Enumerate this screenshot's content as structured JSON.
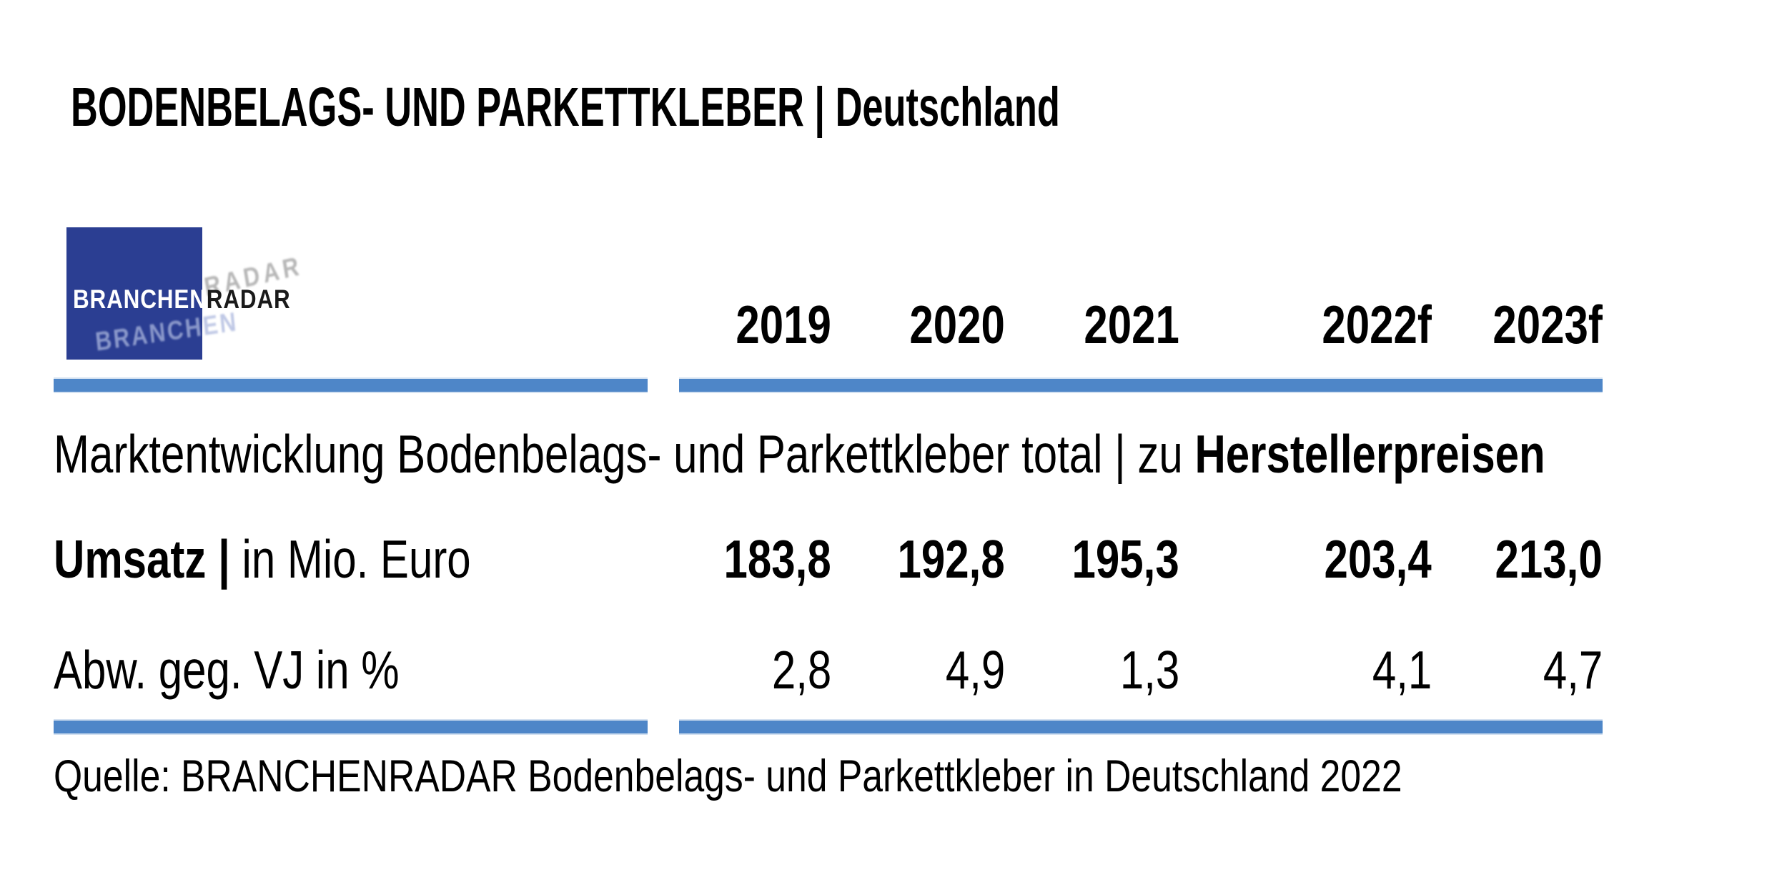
{
  "title": "BODENBELAGS- UND PARKETTKLEBER | Deutschland",
  "logo": {
    "part1": "BRANCHEN",
    "part2": "RADAR"
  },
  "table": {
    "col_headers": [
      "2019",
      "2020",
      "2021",
      "2022f",
      "2023f"
    ],
    "section_label": "Marktentwicklung Bodenbelags- und Parkettkleber total | zu ",
    "section_label_bold": "Herstellerpreisen",
    "rows": [
      {
        "label_bold": "Umsatz | ",
        "label": "in Mio. Euro",
        "values": [
          "183,8",
          "192,8",
          "195,3",
          "203,4",
          "213,0"
        ]
      },
      {
        "label_bold": "",
        "label": "Abw. geg. VJ in %",
        "values": [
          "2,8",
          "4,9",
          "1,3",
          "4,1",
          "4,7"
        ]
      }
    ]
  },
  "source": "Quelle: BRANCHENRADAR Bodenbelags- und Parkettkleber in Deutschland 2022",
  "colors": {
    "rule_blue": "#4E86C8",
    "logo_blue": "#2B3E92",
    "text_black": "#000000"
  },
  "chart_data": {
    "type": "table",
    "title": "BODENBELAGS- UND PARKETTKLEBER | Deutschland",
    "subtitle": "Marktentwicklung Bodenbelags- und Parkettkleber total | zu Herstellerpreisen",
    "categories": [
      "2019",
      "2020",
      "2021",
      "2022f",
      "2023f"
    ],
    "series": [
      {
        "name": "Umsatz | in Mio. Euro",
        "values": [
          183.8,
          192.8,
          195.3,
          203.4,
          213.0
        ]
      },
      {
        "name": "Abw. geg. VJ in %",
        "values": [
          2.8,
          4.9,
          1.3,
          4.1,
          4.7
        ]
      }
    ],
    "forecast_columns": [
      "2022f",
      "2023f"
    ],
    "source": "Quelle: BRANCHENRADAR Bodenbelags- und Parkettkleber in Deutschland 2022"
  }
}
